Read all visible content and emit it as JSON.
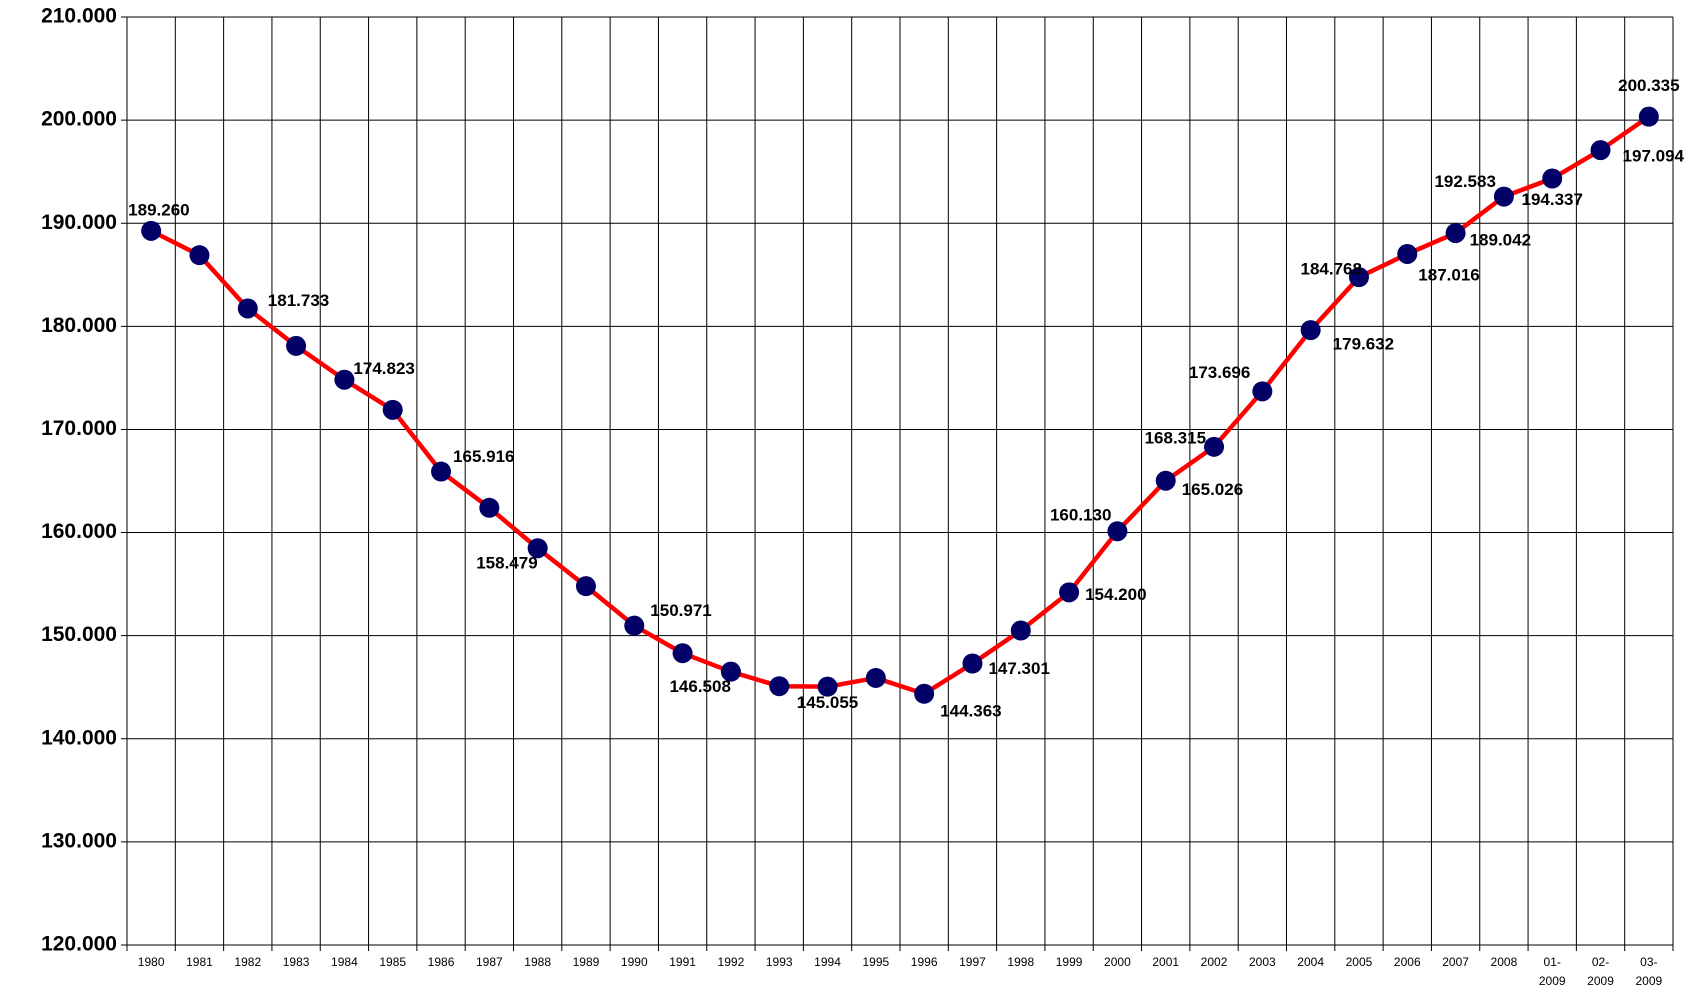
{
  "chart_data": {
    "type": "line",
    "categories": [
      "1980",
      "1981",
      "1982",
      "1983",
      "1984",
      "1985",
      "1986",
      "1987",
      "1988",
      "1989",
      "1990",
      "1991",
      "1992",
      "1993",
      "1994",
      "1995",
      "1996",
      "1997",
      "1998",
      "1999",
      "2000",
      "2001",
      "2002",
      "2003",
      "2004",
      "2005",
      "2006",
      "2007",
      "2008",
      "01- 2009",
      "02- 2009",
      "03- 2009"
    ],
    "series": [
      {
        "color": "#ff0000",
        "marker_color": "#000066",
        "values": [
          189260,
          186900,
          181733,
          178100,
          174823,
          171900,
          165916,
          162400,
          158479,
          154800,
          150971,
          148300,
          146508,
          145100,
          145055,
          145900,
          144363,
          147301,
          150500,
          154200,
          160130,
          165026,
          168315,
          173696,
          179632,
          184768,
          187016,
          189042,
          192583,
          194337,
          197094,
          200335
        ],
        "value_labels": [
          "189.260",
          null,
          "181.733",
          null,
          "174.823",
          null,
          "165.916",
          null,
          "158.479",
          null,
          "150.971",
          null,
          "146.508",
          null,
          "145.055",
          null,
          "144.363",
          "147.301",
          null,
          "154.200",
          "160.130",
          "165.026",
          "168.315",
          "173.696",
          "179.632",
          "184.768",
          "187.016",
          "189.042",
          "192.583",
          "194.337",
          "197.094",
          "200.335"
        ]
      }
    ],
    "ylim": [
      120000,
      210000
    ],
    "yticks": [
      {
        "value": 120000,
        "label": "120.000"
      },
      {
        "value": 130000,
        "label": "130.000"
      },
      {
        "value": 140000,
        "label": "140.000"
      },
      {
        "value": 150000,
        "label": "150.000"
      },
      {
        "value": 160000,
        "label": "160.000"
      },
      {
        "value": 170000,
        "label": "170.000"
      },
      {
        "value": 180000,
        "label": "180.000"
      },
      {
        "value": 190000,
        "label": "190.000"
      },
      {
        "value": 200000,
        "label": "200.000"
      },
      {
        "value": 210000,
        "label": "210.000"
      }
    ],
    "grid": true
  }
}
